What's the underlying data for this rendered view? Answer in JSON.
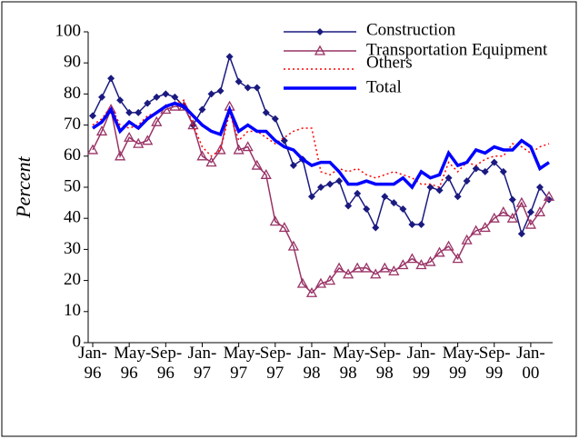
{
  "chart_data": {
    "type": "line",
    "y_label": "Percent",
    "categories": [
      "Jan-96",
      null,
      null,
      null,
      "May-96",
      null,
      null,
      null,
      "Sep-96",
      null,
      null,
      null,
      "Jan-97",
      null,
      null,
      null,
      "May-97",
      null,
      null,
      null,
      "Sep-97",
      null,
      null,
      null,
      "Jan-98",
      null,
      null,
      null,
      "May-98",
      null,
      null,
      null,
      "Sep-98",
      null,
      null,
      null,
      "Jan-99",
      null,
      null,
      null,
      "May-99",
      null,
      null,
      null,
      "Sep-99",
      null,
      null,
      null,
      "Jan-00",
      null,
      null
    ],
    "series": [
      {
        "name": "Construction",
        "color": "#1a1a80",
        "marker": "diamond",
        "values": [
          73,
          79,
          85,
          78,
          74,
          74,
          77,
          79,
          80,
          79,
          76,
          70,
          75,
          80,
          81,
          92,
          84,
          82,
          82,
          74,
          72,
          65,
          57,
          59,
          47,
          50,
          51,
          52,
          44,
          48,
          43,
          37,
          47,
          45,
          43,
          38,
          38,
          50,
          49,
          53,
          47,
          52,
          56,
          55,
          58,
          55,
          46,
          35,
          42,
          50,
          46
        ]
      },
      {
        "name": "Transportation Equipment",
        "color": "#993366",
        "marker": "triangle",
        "values": [
          62,
          68,
          75,
          60,
          66,
          64,
          65,
          71,
          75,
          76,
          76,
          70,
          60,
          58,
          62,
          76,
          62,
          63,
          57,
          54,
          39,
          37,
          31,
          19,
          16,
          19,
          20,
          24,
          22,
          24,
          24,
          22,
          24,
          23,
          25,
          27,
          25,
          26,
          29,
          31,
          27,
          33,
          36,
          37,
          40,
          42,
          40,
          45,
          38,
          42,
          47
        ]
      },
      {
        "name": "Others",
        "color": "#ff0000",
        "dash": true,
        "values": [
          70,
          72,
          76,
          70,
          69,
          70,
          73,
          74,
          76,
          77,
          78,
          70,
          63,
          60,
          62,
          74,
          65,
          68,
          68,
          66,
          64,
          66,
          68,
          69,
          69,
          55,
          54,
          56,
          55,
          56,
          54,
          53,
          54,
          55,
          54,
          53,
          51,
          51,
          50,
          58,
          55,
          58,
          57,
          59,
          60,
          60,
          64,
          63,
          61,
          63,
          64
        ]
      },
      {
        "name": "Total",
        "color": "#0000ff",
        "thick": true,
        "values": [
          69,
          71,
          75,
          68,
          71,
          69,
          72,
          74,
          76,
          77,
          76,
          73,
          70,
          68,
          67,
          75,
          68,
          70,
          68,
          68,
          65,
          63,
          62,
          59,
          57,
          58,
          58,
          55,
          51,
          51,
          52,
          51,
          51,
          51,
          53,
          50,
          55,
          53,
          54,
          61,
          57,
          58,
          62,
          61,
          63,
          62,
          62,
          65,
          63,
          56,
          58
        ]
      }
    ],
    "ylim": [
      0,
      100
    ],
    "yticks": [
      0,
      10,
      20,
      30,
      40,
      50,
      60,
      70,
      80,
      90,
      100
    ],
    "grid": false
  }
}
